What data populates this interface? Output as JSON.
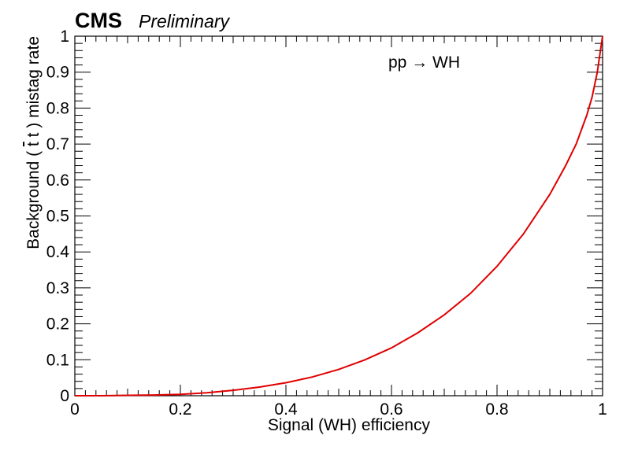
{
  "header": {
    "experiment": "CMS",
    "status": "Preliminary"
  },
  "annotation": {
    "process_prefix": "pp ",
    "arrow": "→",
    "process_suffix": " WH"
  },
  "chart_data": {
    "type": "line",
    "title": "",
    "xlabel": "Signal (WH) efficiency",
    "ylabel_parts": [
      "Background (",
      "t",
      "t",
      ") mistag rate"
    ],
    "xlim": [
      0,
      1
    ],
    "ylim": [
      0,
      1
    ],
    "grid": false,
    "x_ticks": [
      0,
      0.2,
      0.4,
      0.6,
      0.8,
      1
    ],
    "x_tick_labels": [
      "0",
      "0.2",
      "0.4",
      "0.6",
      "0.8",
      "1"
    ],
    "y_ticks": [
      0,
      0.1,
      0.2,
      0.3,
      0.4,
      0.5,
      0.6,
      0.7,
      0.8,
      0.9,
      1
    ],
    "y_tick_labels": [
      "0",
      "0.1",
      "0.2",
      "0.3",
      "0.4",
      "0.5",
      "0.6",
      "0.7",
      "0.8",
      "0.9",
      "1"
    ],
    "line_color": "#e00000",
    "series": [
      {
        "x": [
          0,
          0.05,
          0.1,
          0.15,
          0.2,
          0.25,
          0.3,
          0.35,
          0.4,
          0.45,
          0.5,
          0.55,
          0.6,
          0.65,
          0.7,
          0.75,
          0.8,
          0.85,
          0.9,
          0.93,
          0.95,
          0.97,
          0.98,
          0.99,
          0.995,
          1.0
        ],
        "y": [
          0,
          0,
          0.001,
          0.002,
          0.004,
          0.008,
          0.015,
          0.024,
          0.036,
          0.052,
          0.073,
          0.1,
          0.133,
          0.175,
          0.225,
          0.285,
          0.36,
          0.45,
          0.56,
          0.64,
          0.7,
          0.78,
          0.83,
          0.9,
          0.95,
          1.0
        ]
      }
    ]
  }
}
